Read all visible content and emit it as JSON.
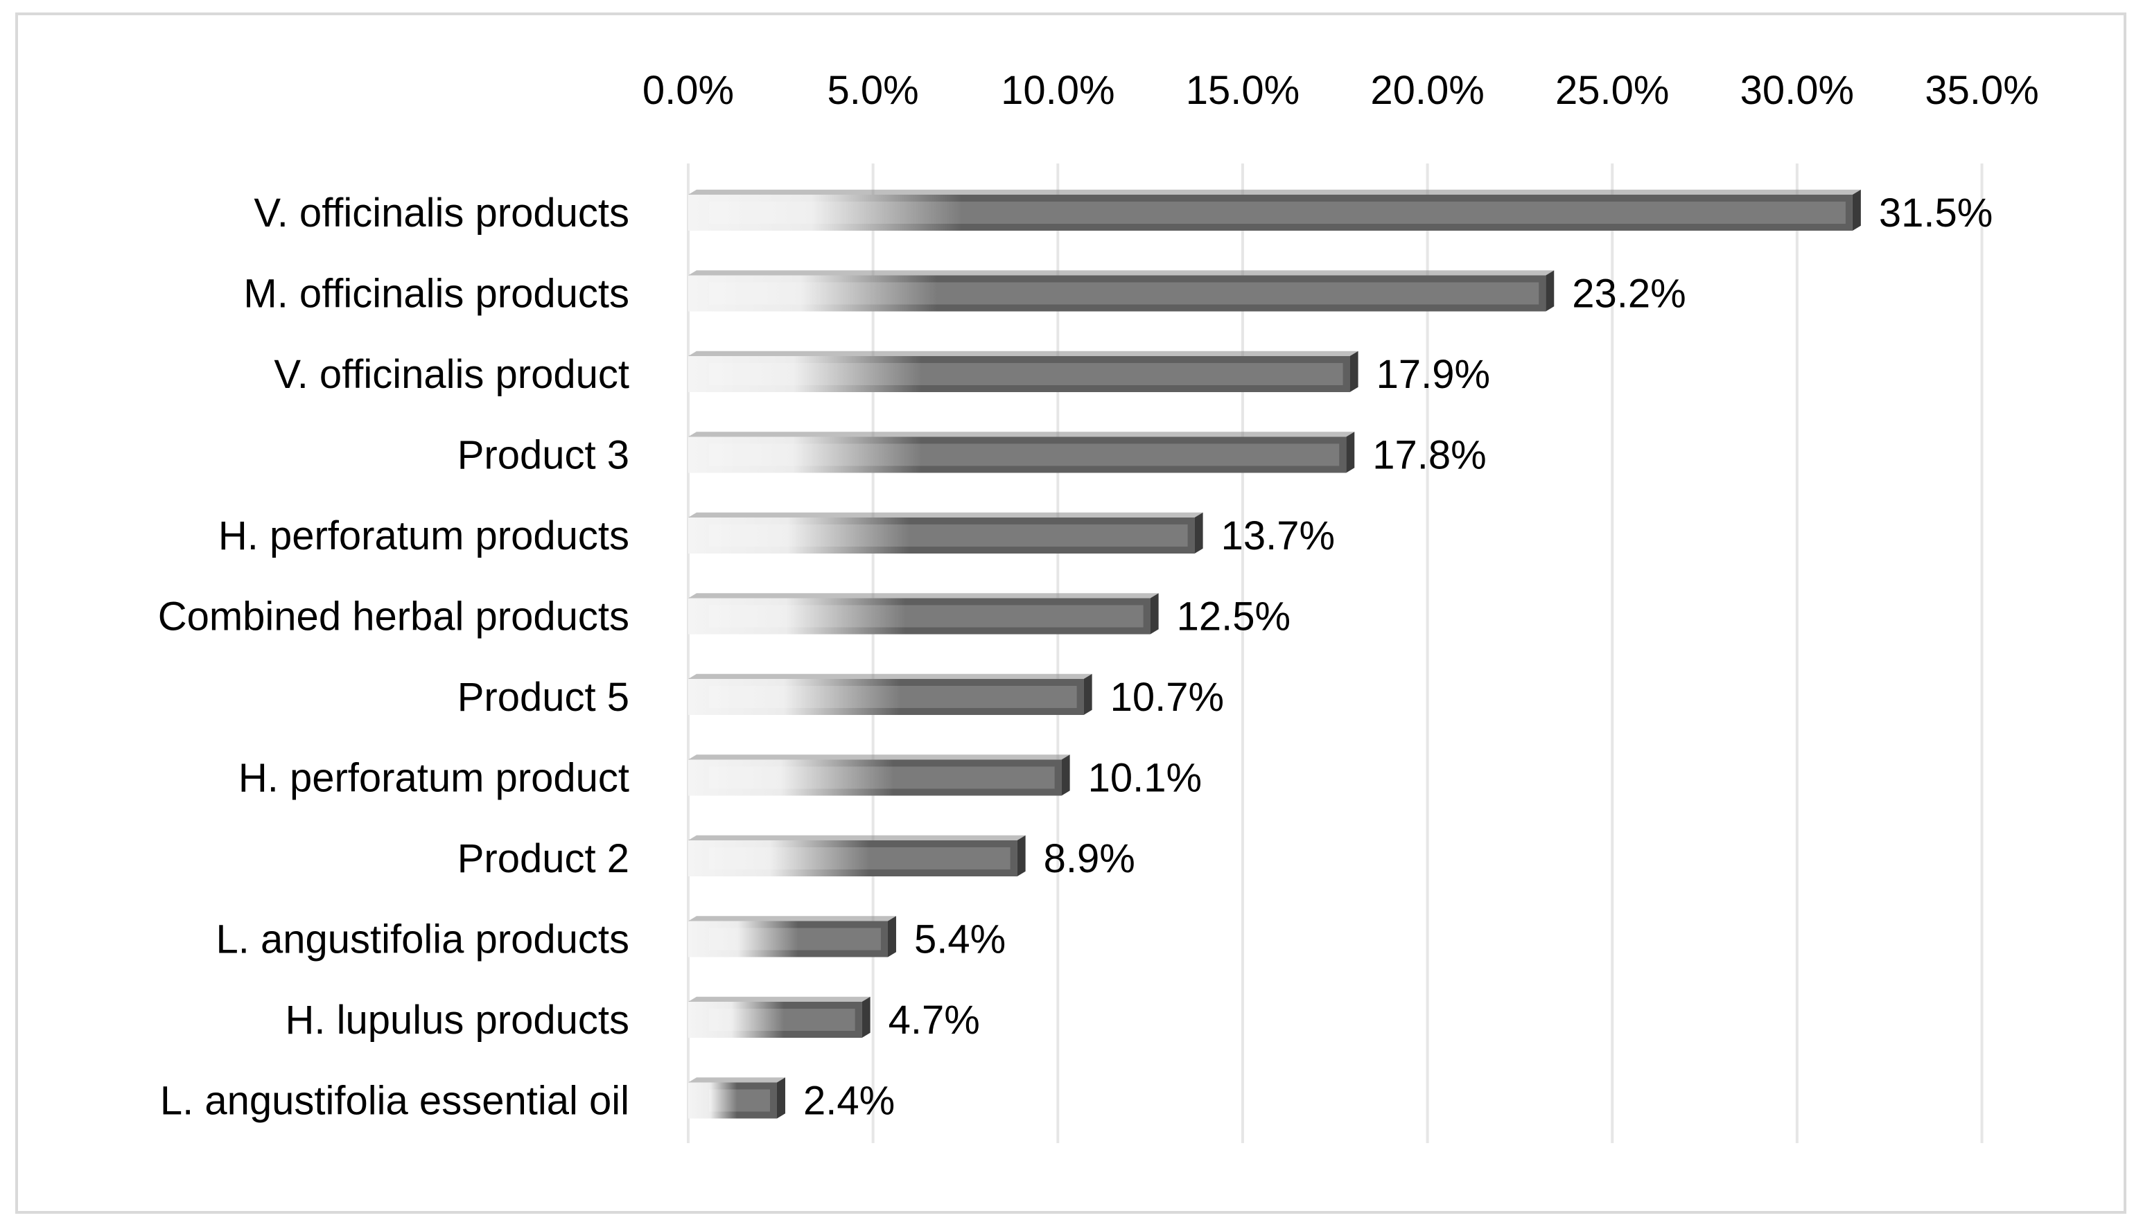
{
  "chart_data": {
    "type": "bar",
    "orientation": "horizontal",
    "title": "",
    "xlabel": "",
    "ylabel": "",
    "xlim": [
      0,
      35
    ],
    "x_tick_values": [
      0,
      5,
      10,
      15,
      20,
      25,
      30,
      35
    ],
    "x_tick_labels": [
      "0.0%",
      "5.0%",
      "10.0%",
      "15.0%",
      "20.0%",
      "25.0%",
      "30.0%",
      "35.0%"
    ],
    "x_axis_position": "top",
    "grid": true,
    "legend": "none",
    "categories": [
      "V. officinalis products",
      "M. officinalis products",
      "V. officinalis product",
      "Product 3",
      "H. perforatum products",
      "Combined herbal products",
      "Product 5",
      "H. perforatum product",
      "Product 2",
      "L. angustifolia products",
      "H. lupulus products",
      "L. angustifolia essential oil"
    ],
    "values": [
      31.5,
      23.2,
      17.9,
      17.8,
      13.7,
      12.5,
      10.7,
      10.1,
      8.9,
      5.4,
      4.7,
      2.4
    ],
    "data_labels": [
      "31.5%",
      "23.2%",
      "17.9%",
      "17.8%",
      "13.7%",
      "12.5%",
      "10.7%",
      "10.1%",
      "8.9%",
      "5.4%",
      "4.7%",
      "2.4%"
    ],
    "colors": {
      "bar_dark": "#5f5f5f",
      "bar_light": "#ececec",
      "bar_side": "#3a3a3a",
      "grid": "#e6e6e6",
      "border": "#d9d9d9"
    }
  }
}
